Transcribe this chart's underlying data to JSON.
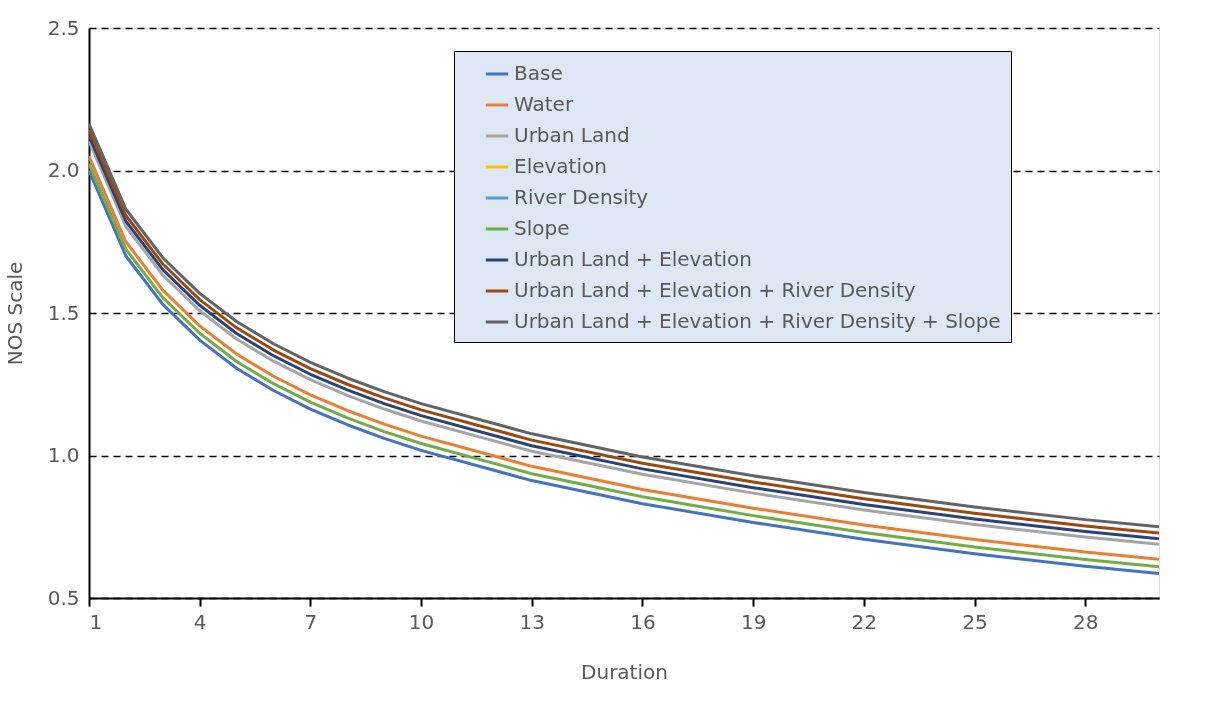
{
  "chart_data": {
    "type": "line",
    "xlabel": "Duration",
    "ylabel": "NOS Scale",
    "x": [
      1,
      2,
      3,
      4,
      5,
      6,
      7,
      8,
      9,
      10,
      13,
      16,
      19,
      22,
      25,
      28,
      30
    ],
    "xlim": [
      1,
      30
    ],
    "xticks": [
      1,
      4,
      7,
      10,
      13,
      16,
      19,
      22,
      25,
      28
    ],
    "ylim": [
      0.5,
      2.5
    ],
    "yticks": [
      0.5,
      {
        "value": 1,
        "label": "1.0"
      },
      1.5,
      {
        "value": 2,
        "label": "2.0"
      },
      2.5
    ],
    "grid": "y",
    "legend": "top right",
    "marker": "none",
    "line_style": "solid",
    "series": [
      {
        "name": "Base",
        "color": "#4472c4",
        "values": [
          2.0,
          1.7,
          1.53,
          1.405,
          1.306,
          1.228,
          1.163,
          1.108,
          1.06,
          1.018,
          0.912,
          0.831,
          0.765,
          0.706,
          0.655,
          0.611,
          0.586
        ]
      },
      {
        "name": "Water",
        "color": "#ed7d31",
        "values": [
          2.05,
          1.75,
          1.58,
          1.455,
          1.356,
          1.278,
          1.213,
          1.158,
          1.11,
          1.068,
          0.962,
          0.881,
          0.815,
          0.756,
          0.705,
          0.661,
          0.636
        ]
      },
      {
        "name": "Urban Land",
        "color": "#a5a5a5",
        "values": [
          2.103,
          1.803,
          1.633,
          1.508,
          1.409,
          1.331,
          1.266,
          1.211,
          1.163,
          1.121,
          1.015,
          0.934,
          0.868,
          0.809,
          0.758,
          0.714,
          0.689
        ]
      },
      {
        "name": "Elevation",
        "color": "#ffc000",
        "values": [
          null,
          null,
          null,
          null,
          null,
          null,
          null,
          null,
          null,
          null,
          null,
          null,
          null,
          null,
          null,
          null,
          null
        ]
      },
      {
        "name": "River Density",
        "color": "#5b9bd5",
        "values": [
          null,
          null,
          null,
          null,
          null,
          null,
          null,
          null,
          null,
          null,
          null,
          null,
          null,
          null,
          null,
          null,
          null
        ]
      },
      {
        "name": "Slope",
        "color": "#70ad47",
        "values": [
          2.024,
          1.724,
          1.554,
          1.429,
          1.33,
          1.252,
          1.187,
          1.132,
          1.084,
          1.042,
          0.936,
          0.855,
          0.789,
          0.73,
          0.679,
          0.635,
          0.61
        ]
      },
      {
        "name": "Urban Land + Elevation",
        "color": "#264478",
        "values": [
          2.122,
          1.822,
          1.652,
          1.527,
          1.428,
          1.35,
          1.285,
          1.23,
          1.182,
          1.14,
          1.034,
          0.953,
          0.887,
          0.828,
          0.777,
          0.733,
          0.708
        ]
      },
      {
        "name": "Urban Land + Elevation + River Density",
        "color": "#9e480e",
        "values": [
          2.142,
          1.842,
          1.672,
          1.547,
          1.448,
          1.37,
          1.305,
          1.25,
          1.202,
          1.16,
          1.054,
          0.973,
          0.907,
          0.848,
          0.797,
          0.753,
          0.728
        ]
      },
      {
        "name": "Urban Land + Elevation + River Density + Slope",
        "color": "#636363",
        "values": [
          2.164,
          1.864,
          1.694,
          1.569,
          1.47,
          1.392,
          1.327,
          1.272,
          1.224,
          1.182,
          1.076,
          0.995,
          0.929,
          0.87,
          0.819,
          0.775,
          0.75
        ]
      }
    ]
  }
}
